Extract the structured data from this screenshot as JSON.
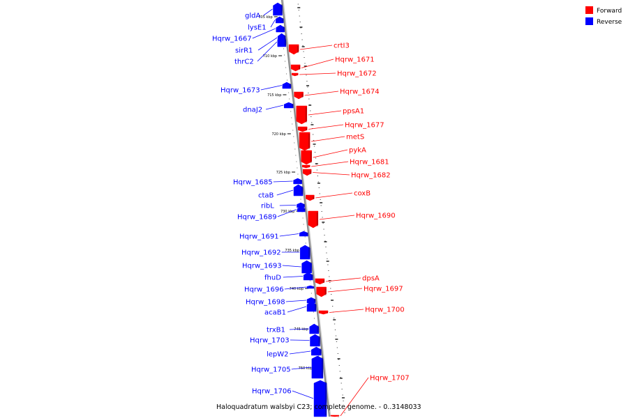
{
  "legend": {
    "forward": {
      "label": "Forward",
      "color": "#ff0000"
    },
    "reverse": {
      "label": "Reverse",
      "color": "#0000ff"
    }
  },
  "caption": "Haloquadratum walsbyi C23; complete genome. - 0..3148033",
  "kbp_ticks": [
    "705 kbp",
    "710 kbp",
    "715 kbp",
    "720 kbp",
    "725 kbp",
    "730 kbp",
    "735 kbp",
    "740 kbp",
    "745 kbp",
    "750 kbp"
  ],
  "genes": [
    {
      "name": "gldA",
      "strand": "reverse"
    },
    {
      "name": "lysE1",
      "strand": "reverse"
    },
    {
      "name": "Hqrw_1667",
      "strand": "reverse"
    },
    {
      "name": "sirR1",
      "strand": "reverse"
    },
    {
      "name": "thrC2",
      "strand": "reverse"
    },
    {
      "name": "crtI3",
      "strand": "forward"
    },
    {
      "name": "Hqrw_1671",
      "strand": "forward"
    },
    {
      "name": "Hqrw_1672",
      "strand": "forward"
    },
    {
      "name": "Hqrw_1673",
      "strand": "reverse"
    },
    {
      "name": "Hqrw_1674",
      "strand": "forward"
    },
    {
      "name": "dnaJ2",
      "strand": "reverse"
    },
    {
      "name": "ppsA1",
      "strand": "forward"
    },
    {
      "name": "Hqrw_1677",
      "strand": "forward"
    },
    {
      "name": "metS",
      "strand": "forward"
    },
    {
      "name": "pykA",
      "strand": "forward"
    },
    {
      "name": "Hqrw_1681",
      "strand": "forward"
    },
    {
      "name": "Hqrw_1682",
      "strand": "forward"
    },
    {
      "name": "Hqrw_1685",
      "strand": "reverse"
    },
    {
      "name": "ctaB",
      "strand": "reverse"
    },
    {
      "name": "coxB",
      "strand": "forward"
    },
    {
      "name": "ribL",
      "strand": "reverse"
    },
    {
      "name": "Hqrw_1689",
      "strand": "reverse"
    },
    {
      "name": "Hqrw_1690",
      "strand": "forward"
    },
    {
      "name": "Hqrw_1691",
      "strand": "reverse"
    },
    {
      "name": "Hqrw_1692",
      "strand": "reverse"
    },
    {
      "name": "Hqrw_1693",
      "strand": "reverse"
    },
    {
      "name": "fhuD",
      "strand": "reverse"
    },
    {
      "name": "dpsA",
      "strand": "forward"
    },
    {
      "name": "Hqrw_1696",
      "strand": "reverse"
    },
    {
      "name": "Hqrw_1697",
      "strand": "forward"
    },
    {
      "name": "Hqrw_1698",
      "strand": "reverse"
    },
    {
      "name": "acaB1",
      "strand": "reverse"
    },
    {
      "name": "Hqrw_1700",
      "strand": "forward"
    },
    {
      "name": "trxB1",
      "strand": "reverse"
    },
    {
      "name": "Hqrw_1703",
      "strand": "reverse"
    },
    {
      "name": "lepW2",
      "strand": "reverse"
    },
    {
      "name": "Hqrw_1705",
      "strand": "reverse"
    },
    {
      "name": "Hqrw_1706",
      "strand": "reverse"
    },
    {
      "name": "Hqrw_1707",
      "strand": "forward"
    }
  ]
}
